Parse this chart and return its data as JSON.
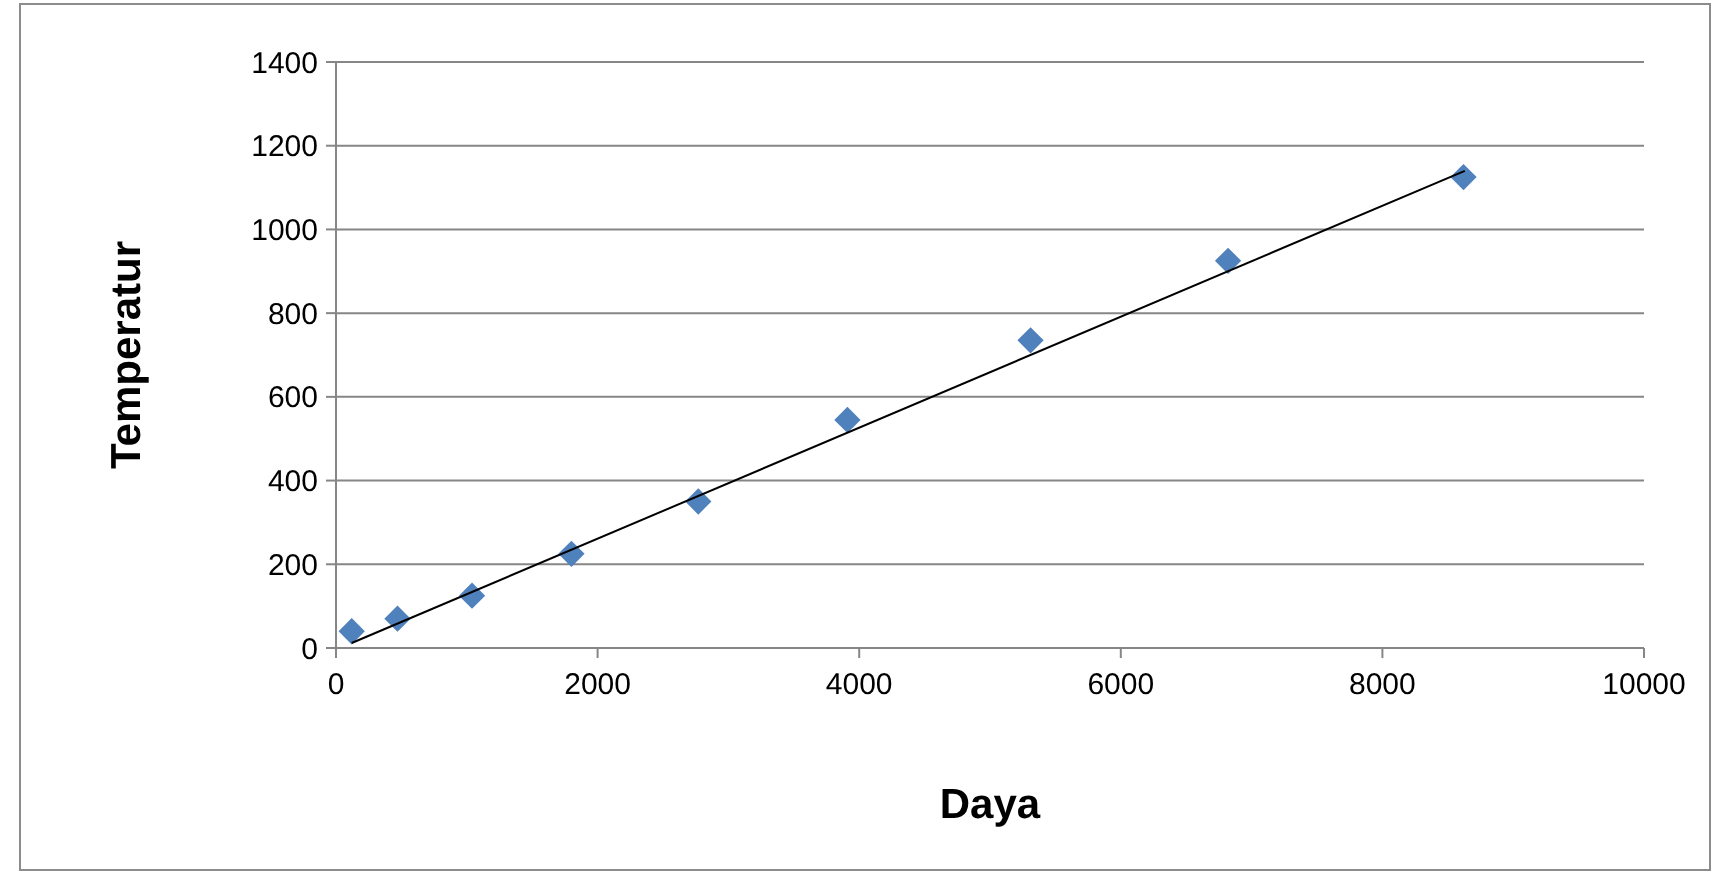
{
  "chart_data": {
    "type": "scatter",
    "xlabel": "Daya",
    "ylabel": "Temperatur",
    "xlim": [
      0,
      10000
    ],
    "ylim": [
      0,
      1400
    ],
    "xticks": [
      0,
      2000,
      4000,
      6000,
      8000,
      10000
    ],
    "yticks": [
      0,
      200,
      400,
      600,
      800,
      1000,
      1200,
      1400
    ],
    "grid": "y",
    "series": [
      {
        "color": "#4f81bd",
        "marker": "diamond",
        "x": [
          120,
          470,
          1040,
          1800,
          2770,
          3910,
          5310,
          6820,
          8620
        ],
        "values": [
          40,
          70,
          125,
          225,
          350,
          545,
          735,
          925,
          1125
        ]
      },
      {
        "type": "line",
        "color": "#000000",
        "marker": "none",
        "x": [
          120,
          8630
        ],
        "values": [
          12,
          1140
        ]
      }
    ]
  }
}
